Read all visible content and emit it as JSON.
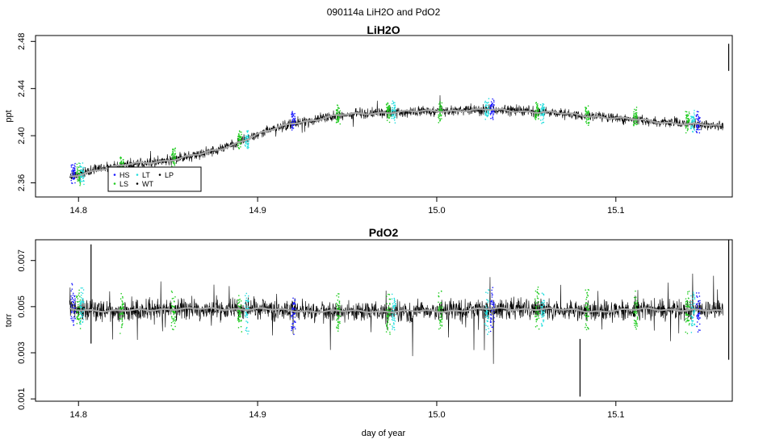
{
  "figure": {
    "title": "090114a   LiH2O and PdO2"
  },
  "colors": {
    "HS": "#1a1aff",
    "LS": "#22cc22",
    "LT": "#22dddd",
    "WT": "#000000",
    "LP": "#000000",
    "noise": "#000000",
    "smooth": "#a8a8a8"
  },
  "chart_data": [
    {
      "type": "line",
      "title": "LiH2O",
      "xlabel": "",
      "ylabel": "ppt",
      "xlim": [
        14.776,
        15.165
      ],
      "ylim": [
        2.348,
        2.485
      ],
      "x_ticks": [
        "14.8",
        "14.9",
        "15.0",
        "15.1"
      ],
      "y_ticks": [
        "2.36",
        "2.40",
        "2.44",
        "2.48"
      ],
      "grid": false,
      "legend": {
        "placement": "bottom-left",
        "entries": [
          "HS",
          "LS",
          "LT",
          "WT",
          "LP"
        ]
      },
      "series": [
        {
          "style": "smoothed-line-over-noise",
          "x": [
            14.795,
            14.81,
            14.83,
            14.85,
            14.87,
            14.88,
            14.89,
            14.9,
            14.91,
            14.92,
            14.93,
            14.94,
            14.95,
            14.975,
            15.0,
            15.03,
            15.06,
            15.1,
            15.13,
            15.16
          ],
          "y": [
            2.365,
            2.371,
            2.376,
            2.379,
            2.385,
            2.389,
            2.395,
            2.401,
            2.406,
            2.411,
            2.413,
            2.416,
            2.418,
            2.42,
            2.421,
            2.422,
            2.42,
            2.415,
            2.411,
            2.408
          ]
        }
      ],
      "annotations": [
        {
          "x": 15.163,
          "y_range": [
            2.455,
            2.478
          ]
        }
      ],
      "calibration_marks": [
        {
          "x": 14.797,
          "y": 2.368,
          "type": "HS"
        },
        {
          "x": 14.8,
          "y": 2.367,
          "type": "LS"
        },
        {
          "x": 14.802,
          "y": 2.367,
          "type": "LT"
        },
        {
          "x": 14.824,
          "y": 2.374,
          "type": "LS"
        },
        {
          "x": 14.853,
          "y": 2.381,
          "type": "LS"
        },
        {
          "x": 14.89,
          "y": 2.396,
          "type": "LS"
        },
        {
          "x": 14.894,
          "y": 2.397,
          "type": "LT"
        },
        {
          "x": 14.92,
          "y": 2.411,
          "type": "HS"
        },
        {
          "x": 14.945,
          "y": 2.418,
          "type": "LS"
        },
        {
          "x": 14.973,
          "y": 2.42,
          "type": "LS"
        },
        {
          "x": 14.976,
          "y": 2.42,
          "type": "LT"
        },
        {
          "x": 15.002,
          "y": 2.421,
          "type": "LS"
        },
        {
          "x": 15.028,
          "y": 2.422,
          "type": "LT"
        },
        {
          "x": 15.031,
          "y": 2.422,
          "type": "HS"
        },
        {
          "x": 15.056,
          "y": 2.42,
          "type": "LS"
        },
        {
          "x": 15.059,
          "y": 2.42,
          "type": "LT"
        },
        {
          "x": 15.084,
          "y": 2.418,
          "type": "LS"
        },
        {
          "x": 15.111,
          "y": 2.415,
          "type": "LS"
        },
        {
          "x": 15.14,
          "y": 2.412,
          "type": "LS"
        },
        {
          "x": 15.143,
          "y": 2.412,
          "type": "LT"
        },
        {
          "x": 15.146,
          "y": 2.412,
          "type": "HS"
        }
      ]
    },
    {
      "type": "line",
      "title": "PdO2",
      "xlabel": "day of year",
      "ylabel": "torr",
      "xlim": [
        14.776,
        15.165
      ],
      "ylim": [
        0.0009,
        0.0079
      ],
      "x_ticks": [
        "14.8",
        "14.9",
        "15.0",
        "15.1"
      ],
      "y_ticks": [
        "0.001",
        "0.003",
        "0.005",
        "0.007"
      ],
      "grid": false,
      "series": [
        {
          "style": "smoothed-line-over-noise",
          "x": [
            14.795,
            14.82,
            14.85,
            14.88,
            14.9,
            14.93,
            14.95,
            14.97,
            15.0,
            15.03,
            15.06,
            15.09,
            15.12,
            15.16
          ],
          "y": [
            0.0049,
            0.0048,
            0.0049,
            0.0049,
            0.0049,
            0.0048,
            0.0048,
            0.0048,
            0.0048,
            0.0049,
            0.0049,
            0.0048,
            0.0049,
            0.0048
          ]
        }
      ],
      "annotations": [
        {
          "x": 15.08,
          "y_range": [
            0.0011,
            0.0036
          ]
        },
        {
          "x": 15.163,
          "y_range": [
            0.0027,
            0.0079
          ]
        },
        {
          "x": 14.807,
          "y_range": [
            0.0034,
            0.0077
          ]
        }
      ],
      "calibration_marks": [
        {
          "x": 14.797,
          "y": 0.005,
          "type": "HS"
        },
        {
          "x": 14.8,
          "y": 0.0049,
          "type": "LS"
        },
        {
          "x": 14.802,
          "y": 0.0049,
          "type": "LT"
        },
        {
          "x": 14.824,
          "y": 0.0048,
          "type": "LS"
        },
        {
          "x": 14.853,
          "y": 0.0048,
          "type": "LS"
        },
        {
          "x": 14.89,
          "y": 0.0048,
          "type": "LS"
        },
        {
          "x": 14.894,
          "y": 0.0048,
          "type": "LT"
        },
        {
          "x": 14.92,
          "y": 0.0047,
          "type": "HS"
        },
        {
          "x": 14.945,
          "y": 0.0048,
          "type": "LS"
        },
        {
          "x": 14.973,
          "y": 0.0047,
          "type": "LS"
        },
        {
          "x": 14.976,
          "y": 0.0047,
          "type": "LT"
        },
        {
          "x": 15.002,
          "y": 0.0048,
          "type": "LS"
        },
        {
          "x": 15.028,
          "y": 0.0048,
          "type": "LT"
        },
        {
          "x": 15.031,
          "y": 0.0048,
          "type": "HS"
        },
        {
          "x": 15.056,
          "y": 0.0049,
          "type": "LS"
        },
        {
          "x": 15.059,
          "y": 0.0049,
          "type": "LT"
        },
        {
          "x": 15.084,
          "y": 0.0048,
          "type": "LS"
        },
        {
          "x": 15.111,
          "y": 0.0048,
          "type": "LS"
        },
        {
          "x": 15.14,
          "y": 0.0048,
          "type": "LS"
        },
        {
          "x": 15.143,
          "y": 0.0048,
          "type": "LT"
        },
        {
          "x": 15.146,
          "y": 0.0048,
          "type": "HS"
        }
      ]
    }
  ]
}
